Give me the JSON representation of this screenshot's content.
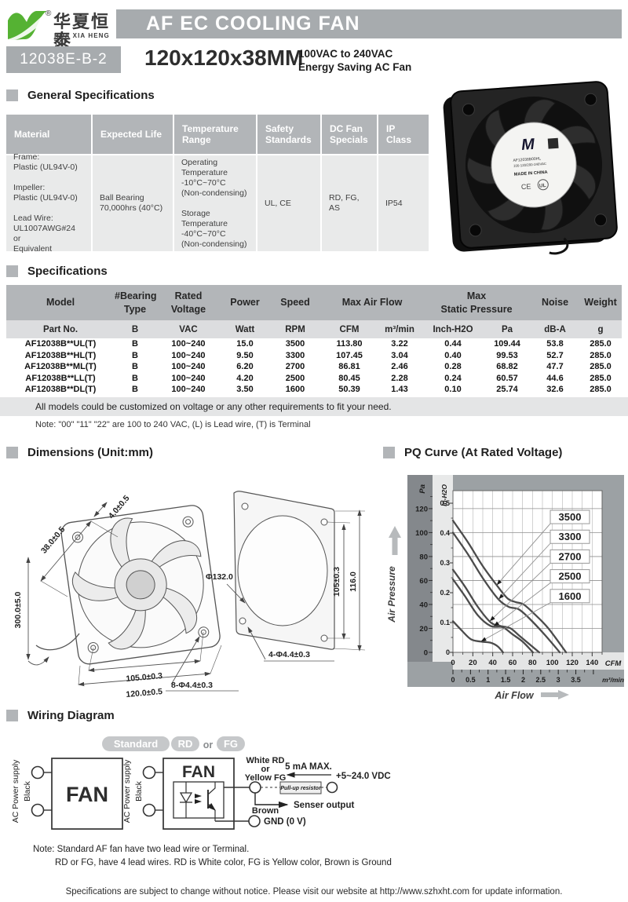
{
  "brand": {
    "logo_letter": "M",
    "registered": "®",
    "name_cn": "华夏恒泰",
    "name_en": "HUA XIA HENG TAI"
  },
  "header": {
    "title": "AF EC COOLING FAN",
    "model_code": "12038E-B-2",
    "size": "120x120x38MM",
    "voltage_line": "100VAC to 240VAC",
    "type_line": "Energy Saving AC Fan"
  },
  "fan_label": {
    "brand": "M",
    "model": "AF12038B00HL",
    "voltage": "100-120/200-240VAC",
    "origin": "MADE IN CHINA",
    "ce": "CE",
    "ul": "UL"
  },
  "sections": {
    "general": "General Specifications",
    "specs": "Specifications",
    "dimensions": "Dimensions (Unit:mm)",
    "pq": "PQ Curve (At Rated Voltage)",
    "wiring": "Wiring Diagram"
  },
  "general_table": {
    "headers": [
      "Material",
      "Expected Life",
      "Temperature Range",
      "Safety Standards",
      "DC Fan Specials",
      "IP Class"
    ],
    "cells": [
      "Frame:\nPlastic (UL94V-0)\n\nImpeller:\nPlastic (UL94V-0)\n\nLead Wire:\nUL1007AWG#24 or\nEquivalent",
      "Ball Bearing\n70,000hrs (40°C)",
      "Operating\nTemperature\n-10°C~70°C\n(Non-condensing)\n\nStorage\nTemperature\n-40°C~70°C\n(Non-condensing)",
      "UL, CE",
      "RD, FG,\nAS",
      "IP54"
    ]
  },
  "spec_table": {
    "h_model": "Model",
    "h_bearing": "#Bearing\nType",
    "h_voltage": "Rated\nVoltage",
    "h_power": "Power",
    "h_speed": "Speed",
    "h_airflow": "Max Air Flow",
    "h_pressure": "Max\nStatic Pressure",
    "h_noise": "Noise",
    "h_weight": "Weight",
    "u_part": "Part No.",
    "u_b": "B",
    "u_vac": "VAC",
    "u_watt": "Watt",
    "u_rpm": "RPM",
    "u_cfm": "CFM",
    "u_m3": "m³/min",
    "u_inch": "Inch-H2O",
    "u_pa": "Pa",
    "u_dba": "dB-A",
    "u_g": "g",
    "rows": [
      [
        "AF12038B**UL(T)",
        "B",
        "100~240",
        "15.0",
        "3500",
        "113.80",
        "3.22",
        "0.44",
        "109.44",
        "53.8",
        "285.0"
      ],
      [
        "AF12038B**HL(T)",
        "B",
        "100~240",
        "9.50",
        "3300",
        "107.45",
        "3.04",
        "0.40",
        "99.53",
        "52.7",
        "285.0"
      ],
      [
        "AF12038B**ML(T)",
        "B",
        "100~240",
        "6.20",
        "2700",
        "86.81",
        "2.46",
        "0.28",
        "68.82",
        "47.7",
        "285.0"
      ],
      [
        "AF12038B**LL(T)",
        "B",
        "100~240",
        "4.20",
        "2500",
        "80.45",
        "2.28",
        "0.24",
        "60.57",
        "44.6",
        "285.0"
      ],
      [
        "AF12038B**DL(T)",
        "B",
        "100~240",
        "3.50",
        "1600",
        "50.39",
        "1.43",
        "0.10",
        "25.74",
        "32.6",
        "285.0"
      ]
    ],
    "banner": "All models could be customized on voltage or any other requirements to fit your need.",
    "note": "Note: \"00\" \"11\"  \"22\" are 100 to 240 VAC,  (L) is Lead wire, (T) is Terminal"
  },
  "dimensions": {
    "d38": "38.0±0.5",
    "d4": "4.0±0.5",
    "d300": "300.0±5.0",
    "d132": "Φ132.0",
    "d105r": "105±0.3",
    "d116": "116.0",
    "d105b": "105.0±0.3",
    "d120": "120.0±0.5",
    "d4h": "4-Φ4.4±0.3",
    "d8h": "8-Φ4.4±0.3"
  },
  "chart_data": {
    "type": "line",
    "title": "PQ Curve (At Rated Voltage)",
    "xlabel": "Air Flow",
    "ylabel": "Air Pressure",
    "x_axis": {
      "primary_unit": "CFM",
      "primary_ticks": [
        0,
        20,
        40,
        60,
        80,
        100,
        120,
        140
      ],
      "secondary_unit": "m³/min",
      "secondary_ticks": [
        0,
        0.5,
        1.0,
        1.5,
        2.0,
        2.5,
        3.0,
        3.5
      ],
      "max_cfm": 150,
      "cfm_per_m3min": 35.31
    },
    "y_axis": {
      "primary_unit": "Pa",
      "primary_ticks": [
        0,
        20,
        40,
        60,
        80,
        100,
        120
      ],
      "secondary_unit": "In-H2O",
      "secondary_ticks": [
        0,
        0.1,
        0.2,
        0.3,
        0.4,
        0.5
      ],
      "max_pa": 135,
      "pa_per_inh2o": 249
    },
    "grid": true,
    "legend": "inline-labels",
    "series": [
      {
        "name": "3500",
        "label_pa": 113,
        "arrow_cfm": 44,
        "points": [
          [
            0,
            110
          ],
          [
            15,
            92
          ],
          [
            30,
            72
          ],
          [
            45,
            55
          ],
          [
            55,
            45
          ],
          [
            63,
            42
          ],
          [
            71,
            40
          ],
          [
            82,
            32
          ],
          [
            96,
            20
          ],
          [
            113.8,
            0
          ]
        ]
      },
      {
        "name": "3300",
        "label_pa": 96.5,
        "arrow_cfm": 46,
        "points": [
          [
            0,
            100
          ],
          [
            15,
            82
          ],
          [
            30,
            62
          ],
          [
            45,
            45
          ],
          [
            56,
            38
          ],
          [
            66,
            36
          ],
          [
            76,
            29
          ],
          [
            92,
            15
          ],
          [
            107.45,
            0
          ]
        ]
      },
      {
        "name": "2700",
        "label_pa": 80,
        "arrow_cfm": 37,
        "points": [
          [
            0,
            69
          ],
          [
            12,
            55
          ],
          [
            25,
            38
          ],
          [
            38,
            25
          ],
          [
            48,
            22
          ],
          [
            58,
            20
          ],
          [
            68,
            13
          ],
          [
            86.8,
            0
          ]
        ]
      },
      {
        "name": "2500",
        "label_pa": 63.5,
        "arrow_cfm": 41,
        "points": [
          [
            0,
            61
          ],
          [
            12,
            47
          ],
          [
            25,
            31
          ],
          [
            38,
            22
          ],
          [
            50,
            21
          ],
          [
            60,
            15
          ],
          [
            70,
            9
          ],
          [
            80.5,
            0
          ]
        ]
      },
      {
        "name": "1600",
        "label_pa": 47,
        "arrow_cfm": 28,
        "points": [
          [
            0,
            26
          ],
          [
            8,
            19
          ],
          [
            18,
            11
          ],
          [
            28,
            9
          ],
          [
            38,
            8
          ],
          [
            45,
            5
          ],
          [
            50.4,
            0
          ]
        ]
      }
    ]
  },
  "wiring": {
    "standard_badge": "Standard",
    "rd_badge": "RD",
    "or_label": "or",
    "fg_badge": "FG",
    "fan_label": "FAN",
    "ac_supply": "AC Power supply",
    "black_label": "Black",
    "sensor_wire_l1": "White  RD",
    "sensor_wire_l2": "or",
    "sensor_wire_l3": "Yellow FG",
    "current_max": "5 mA MAX.",
    "vdc_label": "+5~24.0 VDC",
    "pullup_label": "Pull-up resistor",
    "sensor_output": "Senser output",
    "brown_label": "Brown",
    "gnd_label": "GND (0 V)",
    "note1": "Note: Standard AF fan have two lead wire or Terminal.",
    "note2": "RD or FG, have 4 lead wires. RD is White color, FG is Yellow color, Brown is Ground"
  },
  "footer": {
    "text": "Specifications are subject to change without notice. Please visit our website at http://www.szhxht.com for update information."
  },
  "colors": {
    "brand_green": "#55b233",
    "bar_gray": "#a7abae",
    "table_header_gray": "#b2b5b8",
    "table_body_gray": "#e9eaea",
    "chart_container": "#9ca1a4",
    "band_dark": "#84888c",
    "band_light": "#e8e9e9",
    "curve": "#4b4b4b"
  }
}
